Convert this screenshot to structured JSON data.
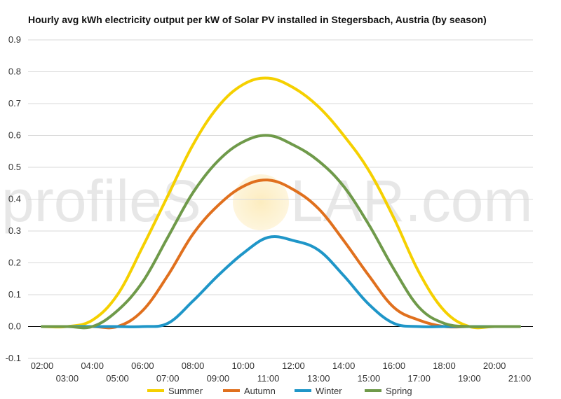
{
  "chart_data": {
    "type": "line",
    "title": "Hourly avg kWh electricity output per kW of Solar PV installed in Stegersbach, Austria (by season)",
    "xlabel": "",
    "ylabel": "",
    "ylim": [
      -0.1,
      0.9
    ],
    "yticks": [
      "-0.1",
      "0.0",
      "0.1",
      "0.2",
      "0.3",
      "0.4",
      "0.5",
      "0.6",
      "0.7",
      "0.8",
      "0.9"
    ],
    "categories": [
      "02:00",
      "03:00",
      "04:00",
      "05:00",
      "06:00",
      "07:00",
      "08:00",
      "09:00",
      "10:00",
      "11:00",
      "12:00",
      "13:00",
      "14:00",
      "15:00",
      "16:00",
      "17:00",
      "18:00",
      "19:00",
      "20:00",
      "21:00"
    ],
    "grid": true,
    "legend": "bottom",
    "series": [
      {
        "name": "Summer",
        "color": "#f5d000",
        "values": [
          0.0,
          0.0,
          0.02,
          0.1,
          0.25,
          0.41,
          0.57,
          0.69,
          0.76,
          0.78,
          0.75,
          0.69,
          0.6,
          0.49,
          0.34,
          0.17,
          0.05,
          0.0,
          0.0,
          0.0
        ]
      },
      {
        "name": "Autumn",
        "color": "#e0701e",
        "values": [
          0.0,
          0.0,
          0.0,
          0.0,
          0.05,
          0.16,
          0.29,
          0.38,
          0.44,
          0.46,
          0.43,
          0.37,
          0.27,
          0.16,
          0.06,
          0.02,
          0.0,
          0.0,
          0.0,
          0.0
        ]
      },
      {
        "name": "Winter",
        "color": "#1f96c8",
        "values": [
          0.0,
          0.0,
          0.0,
          0.0,
          0.0,
          0.01,
          0.08,
          0.16,
          0.23,
          0.28,
          0.27,
          0.24,
          0.16,
          0.07,
          0.01,
          0.0,
          0.0,
          0.0,
          0.0,
          0.0
        ]
      },
      {
        "name": "Spring",
        "color": "#6f9a4a",
        "values": [
          0.0,
          0.0,
          0.0,
          0.05,
          0.14,
          0.28,
          0.42,
          0.52,
          0.58,
          0.6,
          0.57,
          0.52,
          0.44,
          0.32,
          0.18,
          0.06,
          0.01,
          0.0,
          0.0,
          0.0
        ]
      }
    ]
  },
  "watermark": {
    "left": "profileS",
    "right": "LAR.com"
  }
}
